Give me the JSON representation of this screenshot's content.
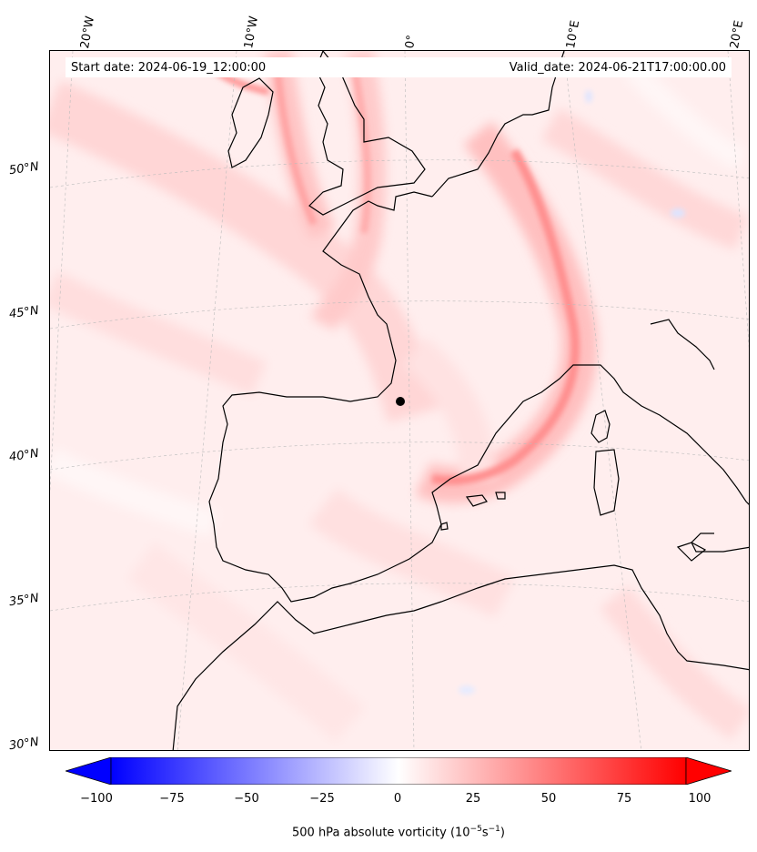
{
  "map": {
    "start_label": "Start date: 2024-06-19_12:00:00",
    "valid_label": "Valid_date: 2024-06-21T17:00:00.00",
    "lon_labels": [
      "20°W",
      "10°W",
      "0°",
      "10°E",
      "20°E"
    ],
    "lat_labels": [
      "50°N",
      "45°N",
      "40°N",
      "35°N",
      "30°N"
    ],
    "field": "500 hPa absolute vorticity",
    "marker": "black dot near 0°, 42°N"
  },
  "colorbar": {
    "ticks": [
      "−100",
      "−75",
      "−50",
      "−25",
      "0",
      "25",
      "50",
      "75",
      "100"
    ],
    "label": "500 hPa absolute vorticity (10",
    "label_exp1": "−5",
    "label_mid": "s",
    "label_exp2": "−1",
    "label_end": ")",
    "min_color": "#0000ff",
    "mid_color": "#ffffff",
    "max_color": "#ff0000"
  }
}
